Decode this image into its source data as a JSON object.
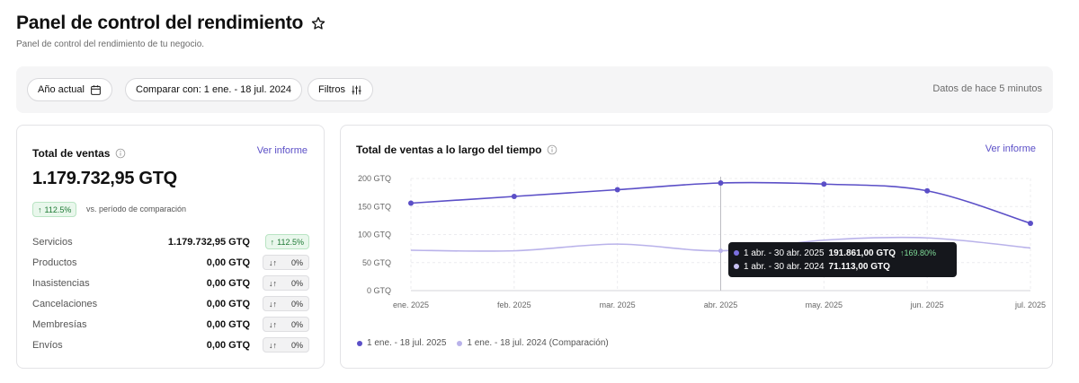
{
  "header": {
    "title": "Panel de control del rendimiento",
    "subtitle": "Panel de control del rendimiento de tu negocio."
  },
  "toolbar": {
    "year_label": "Año actual",
    "compare_label": "Comparar con: 1 ene. - 18 jul. 2024",
    "filters_label": "Filtros",
    "status": "Datos de hace 5 minutos"
  },
  "sales_card": {
    "title": "Total de ventas",
    "link": "Ver informe",
    "total": "1.179.732,95 GTQ",
    "change": "112.5%",
    "vs_text": "vs. período de comparación",
    "rows": [
      {
        "label": "Servicios",
        "value": "1.179.732,95 GTQ",
        "change": "112.5%",
        "trend": "up"
      },
      {
        "label": "Productos",
        "value": "0,00 GTQ",
        "change": "0%",
        "trend": "neutral"
      },
      {
        "label": "Inasistencias",
        "value": "0,00 GTQ",
        "change": "0%",
        "trend": "neutral"
      },
      {
        "label": "Cancelaciones",
        "value": "0,00 GTQ",
        "change": "0%",
        "trend": "neutral"
      },
      {
        "label": "Membresías",
        "value": "0,00 GTQ",
        "change": "0%",
        "trend": "neutral"
      },
      {
        "label": "Envíos",
        "value": "0,00 GTQ",
        "change": "0%",
        "trend": "neutral"
      }
    ]
  },
  "chart_card": {
    "title": "Total de ventas a lo largo del tiempo",
    "link": "Ver informe",
    "tooltip": {
      "rows": [
        {
          "period": "1 abr. - 30 abr. 2025",
          "value": "191.861,00 GTQ",
          "change": "169.80%",
          "color": "#5b4fc7"
        },
        {
          "period": "1 abr. - 30 abr. 2024",
          "value": "71.113,00 GTQ",
          "change": "",
          "color": "#b9b2ea"
        }
      ]
    },
    "legend": [
      {
        "label": "1 ene. - 18 jul. 2025",
        "color": "#5b4fc7"
      },
      {
        "label": "1 ene. - 18 jul. 2024 (Comparación)",
        "color": "#b9b2ea"
      }
    ]
  },
  "chart_data": {
    "type": "line",
    "categories": [
      "ene. 2025",
      "feb. 2025",
      "mar. 2025",
      "abr. 2025",
      "may. 2025",
      "jun. 2025",
      "jul. 2025"
    ],
    "yticks": [
      "0 GTQ",
      "50 GTQ",
      "100 GTQ",
      "150 GTQ",
      "200 GTQ"
    ],
    "ylim": [
      0,
      200
    ],
    "series": [
      {
        "name": "1 ene. - 18 jul. 2025",
        "color": "#5b4fc7",
        "values": [
          156,
          168,
          180,
          192,
          190,
          178,
          120
        ],
        "markers": true
      },
      {
        "name": "1 ene. - 18 jul. 2024 (Comparación)",
        "color": "#b9b2ea",
        "values": [
          72,
          71,
          83,
          71,
          90,
          94,
          76
        ],
        "markers": false
      }
    ],
    "highlight_index": 3,
    "grid": true
  }
}
